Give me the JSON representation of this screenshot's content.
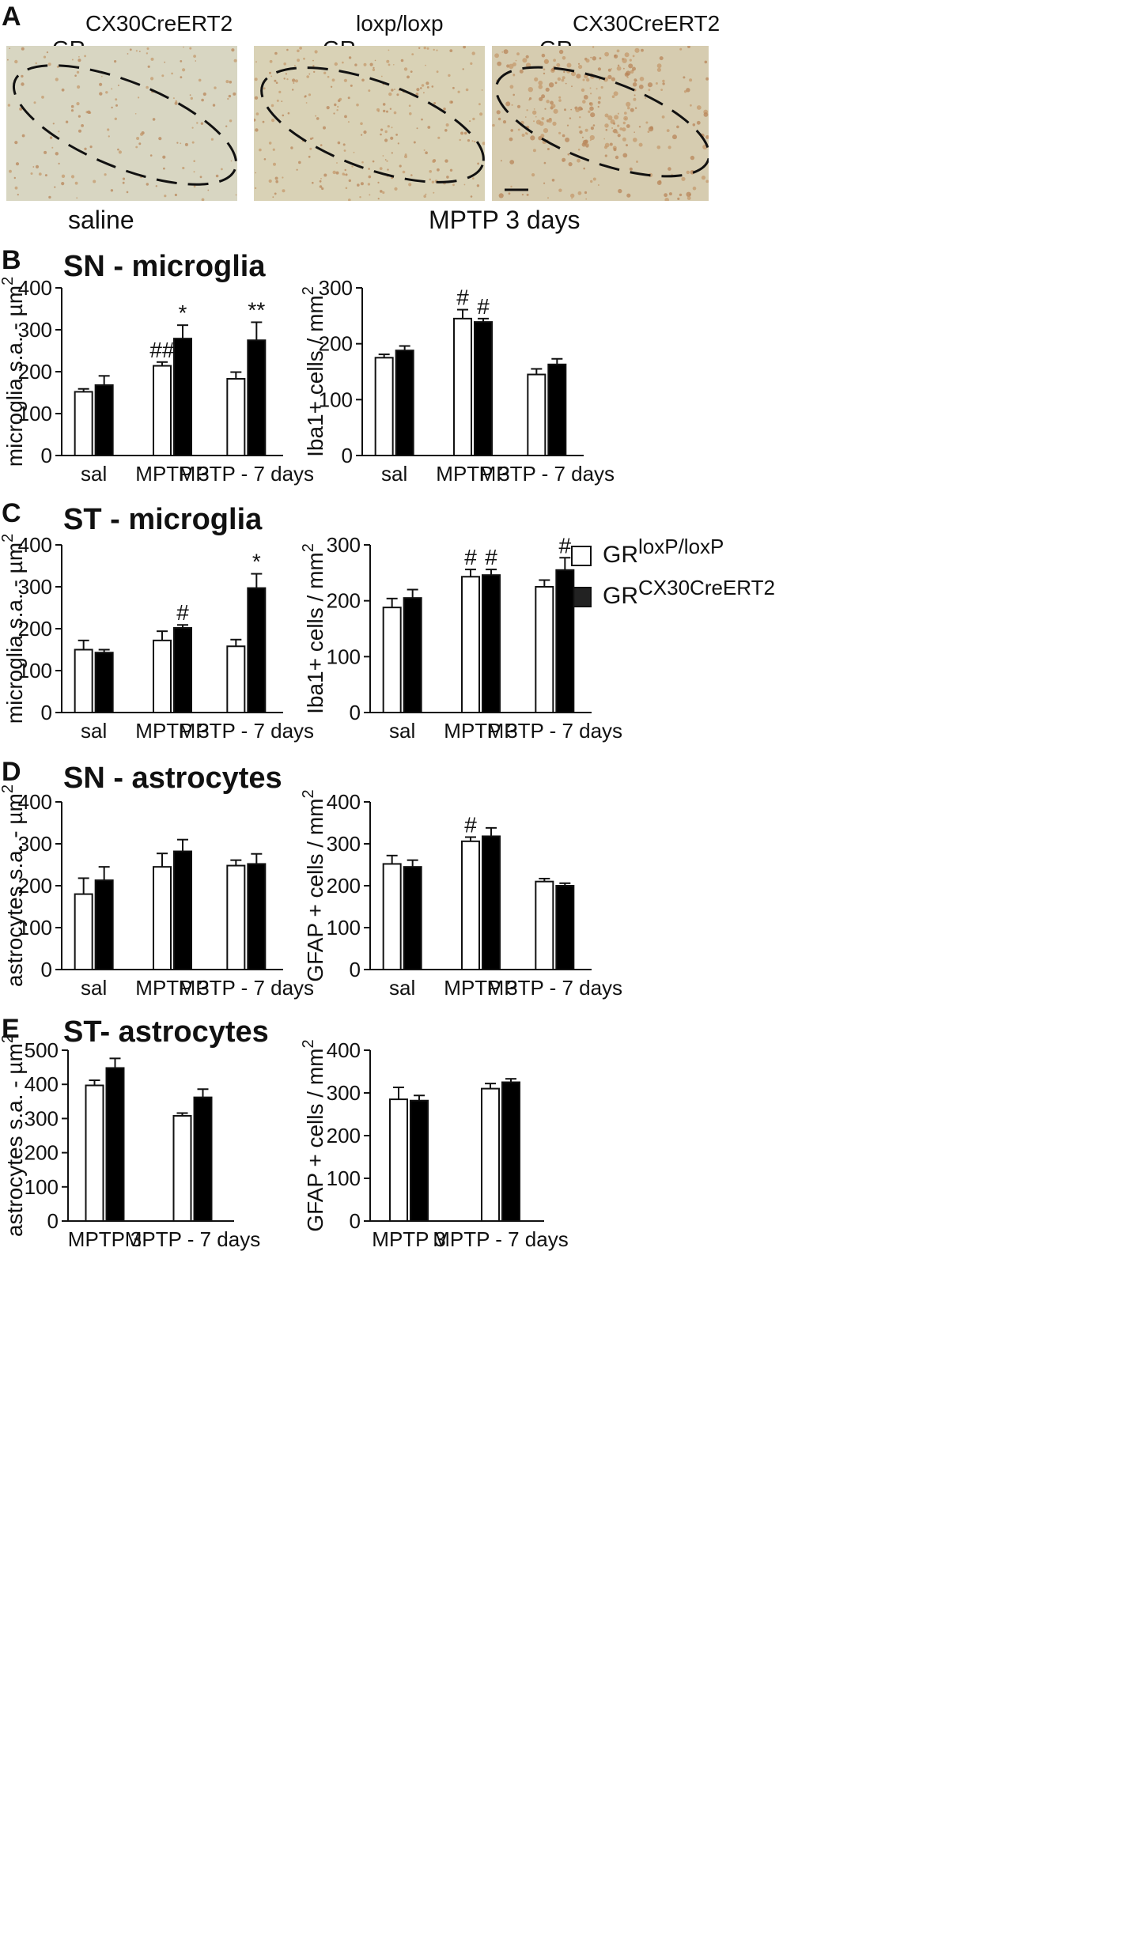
{
  "panel_a": {
    "letter": "A",
    "images": [
      {
        "genotype_prefix": "GR",
        "genotype_sup": "CX30CreERT2",
        "tint": "#d8d6c2"
      },
      {
        "genotype_prefix": "GR",
        "genotype_sup": "loxp/loxp",
        "tint": "#d9d2b6"
      },
      {
        "genotype_prefix": "GR",
        "genotype_sup": "CX30CreERT2",
        "tint": "#d6ccb0"
      }
    ],
    "caption_saline": "saline",
    "caption_mptp": "MPTP 3 days"
  },
  "sections": [
    {
      "letter": "B",
      "title": "SN - microglia"
    },
    {
      "letter": "C",
      "title": "ST - microglia"
    },
    {
      "letter": "D",
      "title": "SN - astrocytes"
    },
    {
      "letter": "E",
      "title": "ST- astrocytes"
    }
  ],
  "legend": {
    "items": [
      {
        "prefix": "GR",
        "sup": "loxP/loxP",
        "color": "#ffffff"
      },
      {
        "prefix": "GR",
        "sup": "CX30CreERT2",
        "color": "#222222"
      }
    ]
  },
  "colors": {
    "white_bar": "#ffffff",
    "black_bar": "#000000"
  },
  "chart_data": [
    {
      "id": "B-left",
      "type": "bar",
      "ylabel": "microglia s.a. - µm",
      "ylabel_sup": "2",
      "ylim": [
        0,
        400
      ],
      "yticks": [
        "0",
        "100",
        "200",
        "300",
        "400"
      ],
      "categories": [
        "sal",
        "MPTP 3",
        "MPTP - 7 days"
      ],
      "series": [
        {
          "name": "GRloxP/loxP",
          "values": [
            152,
            214,
            183
          ],
          "errors": [
            7,
            9,
            16
          ],
          "annotations": [
            "",
            "##",
            ""
          ]
        },
        {
          "name": "GRCX30CreERT2",
          "values": [
            168,
            279,
            275
          ],
          "errors": [
            22,
            32,
            43
          ],
          "annotations": [
            "",
            "*",
            "**"
          ]
        }
      ]
    },
    {
      "id": "B-right",
      "type": "bar",
      "ylabel": "Iba1+ cells / mm",
      "ylabel_sup": "2",
      "ylim": [
        0,
        300
      ],
      "yticks": [
        "0",
        "100",
        "200",
        "300"
      ],
      "categories": [
        "sal",
        "MPTP 3",
        "MPTP - 7 days"
      ],
      "series": [
        {
          "name": "GRloxP/loxP",
          "values": [
            175,
            245,
            145
          ],
          "errors": [
            6,
            16,
            10
          ],
          "annotations": [
            "",
            "#",
            ""
          ]
        },
        {
          "name": "GRCX30CreERT2",
          "values": [
            188,
            239,
            163
          ],
          "errors": [
            8,
            6,
            10
          ],
          "annotations": [
            "",
            "#",
            ""
          ]
        }
      ]
    },
    {
      "id": "C-left",
      "type": "bar",
      "ylabel": "microglia s.a. - µm",
      "ylabel_sup": "2",
      "ylim": [
        0,
        400
      ],
      "yticks": [
        "0",
        "100",
        "200",
        "300",
        "400"
      ],
      "categories": [
        "sal",
        "MPTP 3",
        "MPTP - 7 days"
      ],
      "series": [
        {
          "name": "GRloxP/loxP",
          "values": [
            150,
            172,
            158
          ],
          "errors": [
            22,
            22,
            16
          ],
          "annotations": [
            "",
            "",
            ""
          ]
        },
        {
          "name": "GRCX30CreERT2",
          "values": [
            143,
            202,
            297
          ],
          "errors": [
            7,
            7,
            34
          ],
          "annotations": [
            "",
            "#",
            "*"
          ]
        }
      ]
    },
    {
      "id": "C-right",
      "type": "bar",
      "ylabel": "Iba1+ cells / mm",
      "ylabel_sup": "2",
      "ylim": [
        0,
        300
      ],
      "yticks": [
        "0",
        "100",
        "200",
        "300"
      ],
      "categories": [
        "sal",
        "MPTP 3",
        "MPTP - 7 days"
      ],
      "series": [
        {
          "name": "GRloxP/loxP",
          "values": [
            188,
            243,
            225
          ],
          "errors": [
            16,
            13,
            12
          ],
          "annotations": [
            "",
            "#",
            ""
          ]
        },
        {
          "name": "GRCX30CreERT2",
          "values": [
            205,
            246,
            255
          ],
          "errors": [
            15,
            10,
            22
          ],
          "annotations": [
            "",
            "#",
            "#"
          ]
        }
      ]
    },
    {
      "id": "D-left",
      "type": "bar",
      "ylabel": "astrocytes  s.a. - µm",
      "ylabel_sup": "2",
      "ylim": [
        0,
        400
      ],
      "yticks": [
        "0",
        "100",
        "200",
        "300",
        "400"
      ],
      "categories": [
        "sal",
        "MPTP 3",
        "MPTP - 7 days"
      ],
      "series": [
        {
          "name": "GRloxP/loxP",
          "values": [
            180,
            245,
            248
          ],
          "errors": [
            38,
            32,
            13
          ],
          "annotations": [
            "",
            "",
            ""
          ]
        },
        {
          "name": "GRCX30CreERT2",
          "values": [
            213,
            282,
            252
          ],
          "errors": [
            32,
            28,
            24
          ],
          "annotations": [
            "",
            "",
            ""
          ]
        }
      ]
    },
    {
      "id": "D-right",
      "type": "bar",
      "ylabel": "GFAP + cells / mm",
      "ylabel_sup": "2",
      "ylim": [
        0,
        400
      ],
      "yticks": [
        "0",
        "100",
        "200",
        "300",
        "400"
      ],
      "categories": [
        "sal",
        "MPTP 3",
        "MPTP - 7 days"
      ],
      "series": [
        {
          "name": "GRloxP/loxP",
          "values": [
            252,
            306,
            210
          ],
          "errors": [
            20,
            10,
            7
          ],
          "annotations": [
            "",
            "#",
            ""
          ]
        },
        {
          "name": "GRCX30CreERT2",
          "values": [
            245,
            318,
            200
          ],
          "errors": [
            16,
            20,
            6
          ],
          "annotations": [
            "",
            "",
            ""
          ]
        }
      ]
    },
    {
      "id": "E-left",
      "type": "bar",
      "ylabel": "astrocytes  s.a. - µm",
      "ylabel_sup": "2",
      "ylim": [
        0,
        500
      ],
      "yticks": [
        "0",
        "100",
        "200",
        "300",
        "400",
        "500"
      ],
      "categories": [
        "MPTP 3",
        "MPTP - 7 days"
      ],
      "series": [
        {
          "name": "GRloxP/loxP",
          "values": [
            397,
            308
          ],
          "errors": [
            15,
            8
          ],
          "annotations": [
            "",
            ""
          ]
        },
        {
          "name": "GRCX30CreERT2",
          "values": [
            448,
            362
          ],
          "errors": [
            28,
            24
          ],
          "annotations": [
            "",
            ""
          ]
        }
      ]
    },
    {
      "id": "E-right",
      "type": "bar",
      "ylabel": "GFAP + cells / mm",
      "ylabel_sup": "2",
      "ylim": [
        0,
        400
      ],
      "yticks": [
        "0",
        "100",
        "200",
        "300",
        "400"
      ],
      "categories": [
        "MPTP 3",
        "MPTP - 7 days"
      ],
      "series": [
        {
          "name": "GRloxP/loxP",
          "values": [
            285,
            310
          ],
          "errors": [
            28,
            12
          ],
          "annotations": [
            "",
            ""
          ]
        },
        {
          "name": "GRCX30CreERT2",
          "values": [
            282,
            325
          ],
          "errors": [
            12,
            8
          ],
          "annotations": [
            "",
            ""
          ]
        }
      ]
    }
  ]
}
